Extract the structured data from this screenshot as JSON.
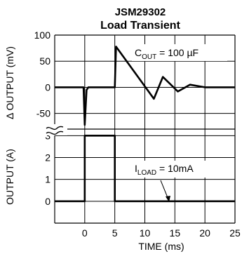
{
  "title": "JSM29302",
  "subtitle": "Load Transient",
  "chart_data": [
    {
      "type": "line",
      "title": "JSM29302",
      "subtitle": "Load Transient",
      "ylabel": "Δ OUTPUT (mV)",
      "xlim": [
        -5,
        25
      ],
      "ylim": [
        -80,
        100
      ],
      "yticks": [
        100,
        50,
        0,
        -50
      ],
      "grid": true,
      "annotation": {
        "prefix": "C",
        "sub": "OUT",
        "text": " = 100 µF"
      },
      "series": [
        {
          "x": [
            -5,
            -0.2,
            0,
            0.3,
            0.6,
            5,
            5.2,
            11.5,
            13,
            15.5,
            17.5,
            20,
            25
          ],
          "values": [
            0,
            0,
            -72,
            -5,
            0,
            0,
            78,
            -22,
            20,
            -8,
            5,
            0,
            0
          ]
        }
      ]
    },
    {
      "type": "line",
      "ylabel": "OUTPUT (A)",
      "xlabel": "TIME (ms)",
      "xlim": [
        -5,
        25
      ],
      "ylim": [
        -1,
        3.3
      ],
      "xticks": [
        0,
        5,
        10,
        15,
        20,
        25
      ],
      "yticks": [
        3,
        2,
        1,
        0
      ],
      "grid": true,
      "annotation": {
        "prefix": "I",
        "sub": "LOAD",
        "text": " = 10mA"
      },
      "series": [
        {
          "x": [
            -5,
            0,
            0,
            5,
            5,
            25
          ],
          "values": [
            0,
            0,
            3,
            3,
            0,
            0
          ]
        }
      ]
    }
  ]
}
